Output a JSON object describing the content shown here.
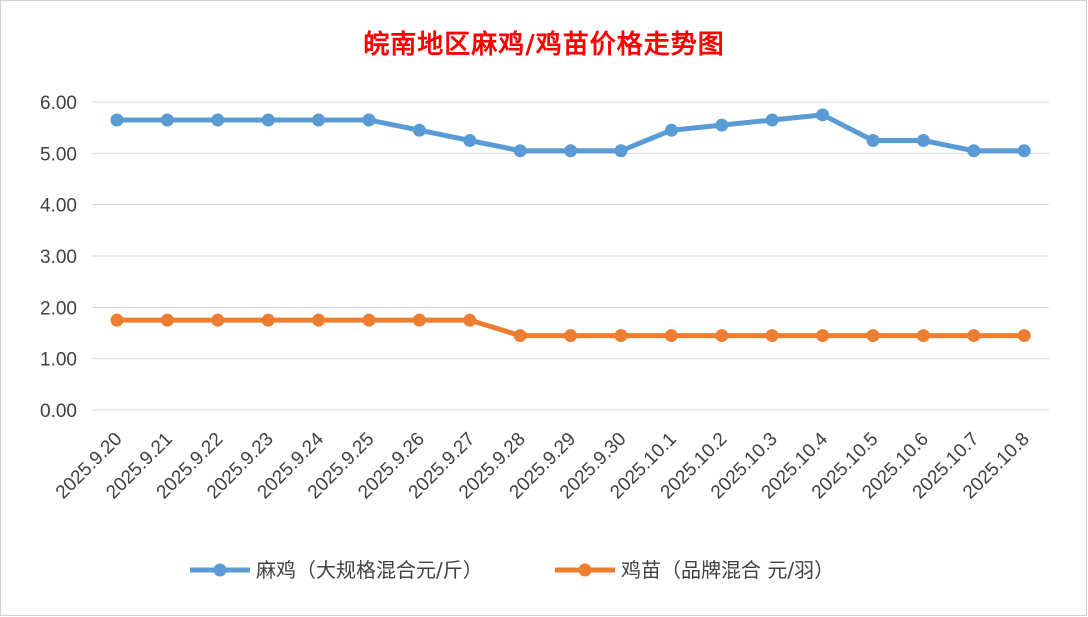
{
  "chart_data": {
    "type": "line",
    "title": "皖南地区麻鸡/鸡苗价格走势图",
    "title_color": "#ff0000",
    "categories": [
      "2025.9.20",
      "2025.9.21",
      "2025.9.22",
      "2025.9.23",
      "2025.9.24",
      "2025.9.25",
      "2025.9.26",
      "2025.9.27",
      "2025.9.28",
      "2025.9.29",
      "2025.9.30",
      "2025.10.1",
      "2025.10.2",
      "2025.10.3",
      "2025.10.4",
      "2025.10.5",
      "2025.10.6",
      "2025.10.7",
      "2025.10.8"
    ],
    "series": [
      {
        "name": "麻鸡（大规格混合元/斤）",
        "color": "#5b9bd5",
        "values": [
          5.65,
          5.65,
          5.65,
          5.65,
          5.65,
          5.65,
          5.45,
          5.25,
          5.05,
          5.05,
          5.05,
          5.45,
          5.55,
          5.65,
          5.75,
          5.25,
          5.25,
          5.05,
          5.05
        ]
      },
      {
        "name": "鸡苗（品牌混合 元/羽）",
        "color": "#ed7d31",
        "values": [
          1.75,
          1.75,
          1.75,
          1.75,
          1.75,
          1.75,
          1.75,
          1.75,
          1.45,
          1.45,
          1.45,
          1.45,
          1.45,
          1.45,
          1.45,
          1.45,
          1.45,
          1.45,
          1.45
        ]
      }
    ],
    "ylim": [
      0,
      6
    ],
    "yticks": [
      "0.00",
      "1.00",
      "2.00",
      "3.00",
      "4.00",
      "5.00",
      "6.00"
    ],
    "xlabel": "",
    "ylabel": "",
    "grid": true,
    "legend_position": "bottom"
  }
}
